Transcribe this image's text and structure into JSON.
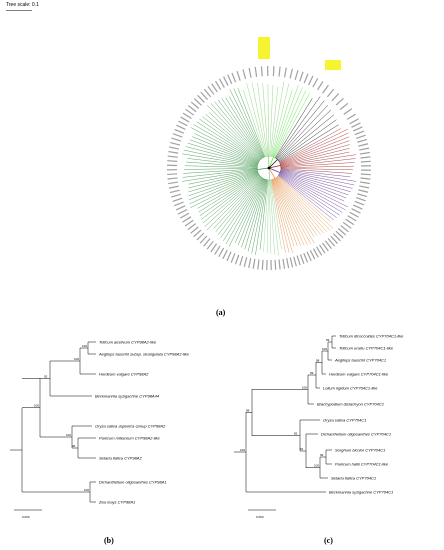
{
  "tree_a": {
    "scale_label": "Tree scale: 0.1",
    "panel_label": "(a)",
    "highlight_color": "#f5f10a",
    "clades": [
      {
        "color": "#2e8b3a"
      },
      {
        "color": "#7ccf6a"
      },
      {
        "color": "#53e03b"
      },
      {
        "color": "#000000"
      },
      {
        "color": "#9b1c1c"
      },
      {
        "color": "#5a2a8c"
      },
      {
        "color": "#e0893a"
      },
      {
        "color": "#8fcf8a"
      }
    ]
  },
  "tree_b": {
    "panel_label": "(b)",
    "scale_label": "0.050",
    "taxa": [
      "Triticum aestivum CYP98A2-like",
      "Aegilops tauschii subsp. strangulata CYP98A2-like",
      "Hordeum vulgare CYP98A2",
      "Beckmannia syzigachne CYP98A44",
      "Oryza sativa Japonica Group CYP98A2",
      "Panicum miliaceum CYP98A2-like",
      "Setaria italica CYP98A2",
      "Dichanthelium oligosanthes CYP98A1",
      "Zea mays CYP98A1"
    ],
    "bootstrap": [
      "100",
      "100",
      "92",
      "100",
      "96",
      "100",
      "100"
    ]
  },
  "tree_c": {
    "panel_label": "(c)",
    "scale_label": "0.050",
    "taxa": [
      "Triticum dicoccoides CYP704C1-like",
      "Triticum urartu CYP704C1-like",
      "Aegilops tauschii CYP704C1",
      "Hordeum vulgare CYP704C1-like",
      "Lolium rigidum CYP704C1-like",
      "Brachypodium distachyon CYP704C1",
      "Oryza sativa CYP704C1",
      "Dichanthelium oligosanthes CYP704C1",
      "Sorghum bicolor CYP704C1",
      "Panicum hallii CYP704C1-like",
      "Setaria italica CYP704C1",
      "Beckmannia syzigachne CYP704C1"
    ],
    "bootstrap": [
      "99",
      "100",
      "98",
      "99",
      "100",
      "99",
      "100",
      "81",
      "82",
      "98",
      "100"
    ]
  }
}
